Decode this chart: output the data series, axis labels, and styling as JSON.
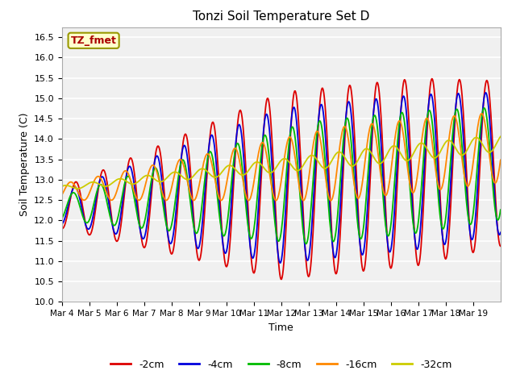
{
  "title": "Tonzi Soil Temperature Set D",
  "xlabel": "Time",
  "ylabel": "Soil Temperature (C)",
  "ylim": [
    10.0,
    16.75
  ],
  "yticks": [
    10.0,
    10.5,
    11.0,
    11.5,
    12.0,
    12.5,
    13.0,
    13.5,
    14.0,
    14.5,
    15.0,
    15.5,
    16.0,
    16.5
  ],
  "bg_color": "#ffffff",
  "plot_bg_color": "#f0f0f0",
  "legend_label": "TZ_fmet",
  "legend_box_color": "#ffffcc",
  "legend_border_color": "#999900",
  "series": {
    "-2cm": {
      "color": "#dd0000",
      "lw": 1.3
    },
    "-4cm": {
      "color": "#0000dd",
      "lw": 1.3
    },
    "-8cm": {
      "color": "#00bb00",
      "lw": 1.3
    },
    "-16cm": {
      "color": "#ff8800",
      "lw": 1.3
    },
    "-32cm": {
      "color": "#cccc00",
      "lw": 1.3
    }
  },
  "x_tick_labels": [
    "Mar 4",
    "Mar 5",
    "Mar 6",
    "Mar 7",
    "Mar 8",
    "Mar 9",
    "Mar 10",
    "Mar 11",
    "Mar 12",
    "Mar 13",
    "Mar 14",
    "Mar 15",
    "Mar 16",
    "Mar 17",
    "Mar 18",
    "Mar 19"
  ],
  "n_days": 16,
  "pts_per_day": 48
}
